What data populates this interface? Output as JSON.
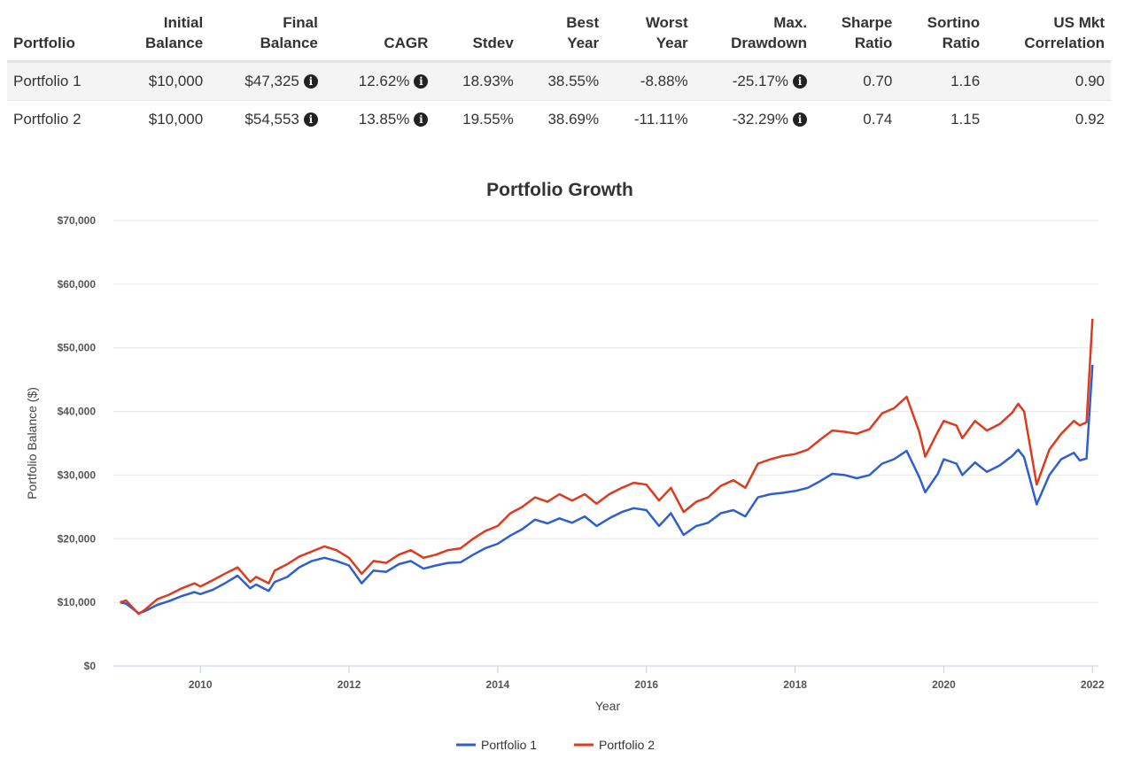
{
  "table": {
    "headers": [
      [
        "",
        "Portfolio"
      ],
      [
        "Initial",
        "Balance"
      ],
      [
        "",
        "Final",
        "Balance"
      ],
      [
        "",
        "CAGR"
      ],
      [
        "",
        "Stdev"
      ],
      [
        "Best",
        "Year"
      ],
      [
        "Worst",
        "Year"
      ],
      [
        "Max.",
        "Drawdown"
      ],
      [
        "Sharpe",
        "Ratio"
      ],
      [
        "Sortino",
        "Ratio"
      ],
      [
        "US Mkt",
        "Correlation"
      ]
    ],
    "rows": [
      {
        "portfolio": "Portfolio 1",
        "initial_balance": "$10,000",
        "final_balance": "$47,325",
        "cagr": "12.62%",
        "stdev": "18.93%",
        "best_year": "38.55%",
        "worst_year": "-8.88%",
        "max_drawdown": "-25.17%",
        "sharpe_ratio": "0.70",
        "sortino_ratio": "1.16",
        "us_mkt_correlation": "0.90"
      },
      {
        "portfolio": "Portfolio 2",
        "initial_balance": "$10,000",
        "final_balance": "$54,553",
        "cagr": "13.85%",
        "stdev": "19.55%",
        "best_year": "38.69%",
        "worst_year": "-11.11%",
        "max_drawdown": "-32.29%",
        "sharpe_ratio": "0.74",
        "sortino_ratio": "1.15",
        "us_mkt_correlation": "0.92"
      }
    ],
    "info_icon": "info-circle-icon"
  },
  "chart_data": {
    "type": "line",
    "title": "Portfolio Growth",
    "xlabel": "Year",
    "ylabel": "Portfolio Balance ($)",
    "xlim": [
      2008.83,
      2022.08
    ],
    "ylim": [
      0,
      70000
    ],
    "x_ticks": [
      2010,
      2012,
      2014,
      2016,
      2018,
      2020,
      2022
    ],
    "y_ticks": [
      0,
      10000,
      20000,
      30000,
      40000,
      50000,
      60000,
      70000
    ],
    "y_tick_labels": [
      "$0",
      "$10,000",
      "$20,000",
      "$30,000",
      "$40,000",
      "$50,000",
      "$60,000",
      "$70,000"
    ],
    "grid": true,
    "legend_position": "bottom",
    "series": [
      {
        "name": "Portfolio 1",
        "color": "#2f5fcf",
        "points": [
          [
            2008.92,
            10000
          ],
          [
            2009.0,
            9800
          ],
          [
            2009.17,
            8300
          ],
          [
            2009.25,
            8600
          ],
          [
            2009.42,
            9600
          ],
          [
            2009.58,
            10200
          ],
          [
            2009.75,
            11000
          ],
          [
            2009.92,
            11600
          ],
          [
            2010.0,
            11300
          ],
          [
            2010.17,
            12000
          ],
          [
            2010.33,
            13000
          ],
          [
            2010.5,
            14200
          ],
          [
            2010.67,
            12200
          ],
          [
            2010.75,
            12800
          ],
          [
            2010.92,
            11800
          ],
          [
            2011.0,
            13200
          ],
          [
            2011.17,
            14000
          ],
          [
            2011.33,
            15500
          ],
          [
            2011.5,
            16500
          ],
          [
            2011.67,
            17000
          ],
          [
            2011.83,
            16500
          ],
          [
            2012.0,
            15800
          ],
          [
            2012.17,
            13000
          ],
          [
            2012.33,
            15000
          ],
          [
            2012.5,
            14800
          ],
          [
            2012.67,
            16000
          ],
          [
            2012.83,
            16500
          ],
          [
            2013.0,
            15300
          ],
          [
            2013.17,
            15800
          ],
          [
            2013.33,
            16200
          ],
          [
            2013.5,
            16300
          ],
          [
            2013.67,
            17500
          ],
          [
            2013.83,
            18500
          ],
          [
            2014.0,
            19200
          ],
          [
            2014.17,
            20500
          ],
          [
            2014.33,
            21500
          ],
          [
            2014.5,
            23000
          ],
          [
            2014.67,
            22400
          ],
          [
            2014.83,
            23200
          ],
          [
            2015.0,
            22500
          ],
          [
            2015.17,
            23500
          ],
          [
            2015.33,
            22000
          ],
          [
            2015.5,
            23200
          ],
          [
            2015.67,
            24200
          ],
          [
            2015.83,
            24800
          ],
          [
            2016.0,
            24500
          ],
          [
            2016.17,
            22000
          ],
          [
            2016.33,
            24000
          ],
          [
            2016.5,
            20600
          ],
          [
            2016.67,
            22000
          ],
          [
            2016.83,
            22500
          ],
          [
            2017.0,
            24000
          ],
          [
            2017.17,
            24500
          ],
          [
            2017.33,
            23500
          ],
          [
            2017.5,
            26500
          ],
          [
            2017.67,
            27000
          ],
          [
            2017.83,
            27200
          ],
          [
            2018.0,
            27500
          ],
          [
            2018.17,
            28000
          ],
          [
            2018.33,
            29000
          ],
          [
            2018.5,
            30200
          ],
          [
            2018.67,
            30000
          ],
          [
            2018.83,
            29500
          ],
          [
            2019.0,
            30000
          ],
          [
            2019.17,
            31800
          ],
          [
            2019.33,
            32500
          ],
          [
            2019.5,
            33800
          ],
          [
            2019.67,
            29700
          ],
          [
            2019.75,
            27300
          ],
          [
            2019.92,
            30200
          ],
          [
            2020.0,
            32500
          ],
          [
            2020.17,
            31800
          ],
          [
            2020.25,
            30000
          ],
          [
            2020.42,
            32000
          ],
          [
            2020.58,
            30500
          ],
          [
            2020.75,
            31500
          ],
          [
            2020.92,
            33000
          ],
          [
            2021.0,
            34000
          ],
          [
            2021.08,
            32800
          ],
          [
            2021.25,
            25400
          ],
          [
            2021.42,
            30000
          ],
          [
            2021.58,
            32500
          ],
          [
            2021.75,
            33500
          ],
          [
            2021.83,
            32300
          ],
          [
            2021.92,
            32600
          ],
          [
            2022.0,
            47325
          ]
        ]
      },
      {
        "name": "Portfolio 2",
        "color": "#dd3a1e",
        "points": [
          [
            2008.92,
            10000
          ],
          [
            2009.0,
            10300
          ],
          [
            2009.17,
            8200
          ],
          [
            2009.25,
            8800
          ],
          [
            2009.42,
            10500
          ],
          [
            2009.58,
            11200
          ],
          [
            2009.75,
            12200
          ],
          [
            2009.92,
            13000
          ],
          [
            2010.0,
            12500
          ],
          [
            2010.17,
            13500
          ],
          [
            2010.33,
            14500
          ],
          [
            2010.5,
            15500
          ],
          [
            2010.67,
            13200
          ],
          [
            2010.75,
            14000
          ],
          [
            2010.92,
            13000
          ],
          [
            2011.0,
            15000
          ],
          [
            2011.17,
            16000
          ],
          [
            2011.33,
            17200
          ],
          [
            2011.5,
            18000
          ],
          [
            2011.67,
            18800
          ],
          [
            2011.83,
            18200
          ],
          [
            2012.0,
            17000
          ],
          [
            2012.17,
            14500
          ],
          [
            2012.33,
            16500
          ],
          [
            2012.5,
            16200
          ],
          [
            2012.67,
            17500
          ],
          [
            2012.83,
            18200
          ],
          [
            2013.0,
            17000
          ],
          [
            2013.17,
            17500
          ],
          [
            2013.33,
            18200
          ],
          [
            2013.5,
            18500
          ],
          [
            2013.67,
            20000
          ],
          [
            2013.83,
            21200
          ],
          [
            2014.0,
            22000
          ],
          [
            2014.17,
            24000
          ],
          [
            2014.33,
            25000
          ],
          [
            2014.5,
            26500
          ],
          [
            2014.67,
            25800
          ],
          [
            2014.83,
            27000
          ],
          [
            2015.0,
            26000
          ],
          [
            2015.17,
            27000
          ],
          [
            2015.33,
            25500
          ],
          [
            2015.5,
            27000
          ],
          [
            2015.67,
            28000
          ],
          [
            2015.83,
            28800
          ],
          [
            2016.0,
            28500
          ],
          [
            2016.17,
            26000
          ],
          [
            2016.33,
            28000
          ],
          [
            2016.5,
            24200
          ],
          [
            2016.67,
            25800
          ],
          [
            2016.83,
            26500
          ],
          [
            2017.0,
            28300
          ],
          [
            2017.17,
            29200
          ],
          [
            2017.33,
            28000
          ],
          [
            2017.5,
            31800
          ],
          [
            2017.67,
            32500
          ],
          [
            2017.83,
            33000
          ],
          [
            2018.0,
            33300
          ],
          [
            2018.17,
            34000
          ],
          [
            2018.33,
            35500
          ],
          [
            2018.5,
            37000
          ],
          [
            2018.67,
            36800
          ],
          [
            2018.83,
            36500
          ],
          [
            2019.0,
            37200
          ],
          [
            2019.17,
            39700
          ],
          [
            2019.33,
            40500
          ],
          [
            2019.5,
            42300
          ],
          [
            2019.67,
            36800
          ],
          [
            2019.75,
            32900
          ],
          [
            2019.92,
            36800
          ],
          [
            2020.0,
            38500
          ],
          [
            2020.17,
            37800
          ],
          [
            2020.25,
            35800
          ],
          [
            2020.42,
            38500
          ],
          [
            2020.58,
            37000
          ],
          [
            2020.75,
            38000
          ],
          [
            2020.92,
            39800
          ],
          [
            2021.0,
            41200
          ],
          [
            2021.08,
            40000
          ],
          [
            2021.25,
            28500
          ],
          [
            2021.42,
            34000
          ],
          [
            2021.58,
            36500
          ],
          [
            2021.75,
            38500
          ],
          [
            2021.83,
            37800
          ],
          [
            2021.92,
            38300
          ],
          [
            2022.0,
            54553
          ]
        ]
      }
    ]
  }
}
